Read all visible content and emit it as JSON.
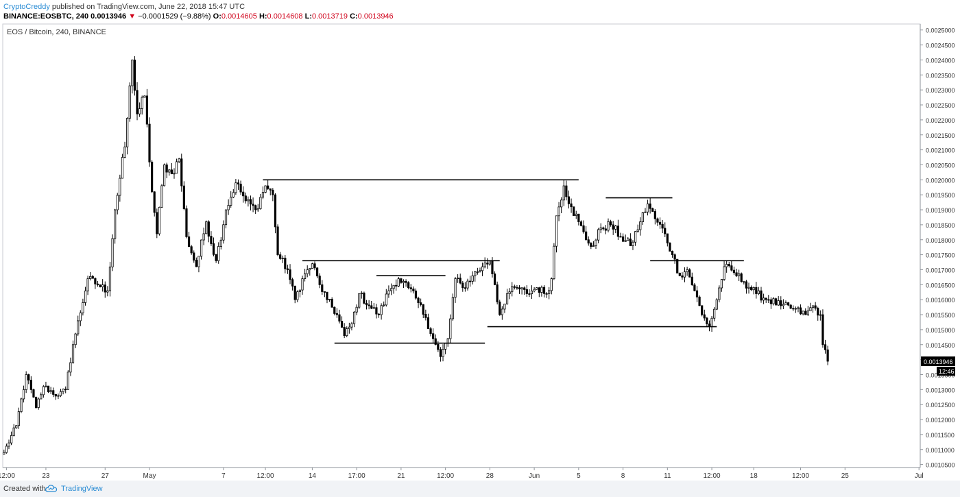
{
  "header": {
    "author": "CryptoCreddy",
    "published": "published on TradingView.com, June 22, 2018 15:47 UTC",
    "symbol": "BINANCE:EOSBTC, 240",
    "last": "0.0013946",
    "change_arrow": "▼",
    "change": "−0.0001529 (−9.88%)",
    "o_label": "O:",
    "o_value": "0.0014605",
    "h_label": "H:",
    "h_value": "0.0014608",
    "l_label": "L:",
    "l_value": "0.0013719",
    "c_label": "C:",
    "c_value": "0.0013946"
  },
  "footer": {
    "created_with": "Created with",
    "brand": "TradingView",
    "logo_icon": "tradingview-cloud-icon"
  },
  "chart_data": {
    "type": "candlestick",
    "title": "EOS / Bitcoin, 240, BINANCE",
    "ylim": [
      0.00104,
      0.00252
    ],
    "y_ticks": [
      "0.0010500",
      "0.0011000",
      "0.0011500",
      "0.0012000",
      "0.0012500",
      "0.0013000",
      "0.0013500",
      "0.0014000",
      "0.0014500",
      "0.0015000",
      "0.0015500",
      "0.0016000",
      "0.0016500",
      "0.0017000",
      "0.0017500",
      "0.0018000",
      "0.0018500",
      "0.0019000",
      "0.0019500",
      "0.0020000",
      "0.0020500",
      "0.0021000",
      "0.0021500",
      "0.0022000",
      "0.0022500",
      "0.0023000",
      "0.0023500",
      "0.0024000",
      "0.0024500",
      "0.0025000"
    ],
    "x_ticks": [
      {
        "label": "12:00",
        "bar": 1
      },
      {
        "label": "23",
        "bar": 17
      },
      {
        "label": "27",
        "bar": 41
      },
      {
        "label": "May",
        "bar": 59
      },
      {
        "label": "7",
        "bar": 89
      },
      {
        "label": "12:00",
        "bar": 106
      },
      {
        "label": "14",
        "bar": 125
      },
      {
        "label": "17:00",
        "bar": 143
      },
      {
        "label": "21",
        "bar": 161
      },
      {
        "label": "12:00",
        "bar": 179
      },
      {
        "label": "28",
        "bar": 197
      },
      {
        "label": "Jun",
        "bar": 215
      },
      {
        "label": "5",
        "bar": 233
      },
      {
        "label": "8",
        "bar": 251
      },
      {
        "label": "11",
        "bar": 269
      },
      {
        "label": "12:00",
        "bar": 287
      },
      {
        "label": "18",
        "bar": 304
      },
      {
        "label": "12:00",
        "bar": 323
      },
      {
        "label": "25",
        "bar": 341
      },
      {
        "label": "Jul",
        "bar": 371
      }
    ],
    "bars_visible": 372,
    "last_price_label": "0.0013946",
    "countdown_label": "12:46",
    "anchors": [
      {
        "bar": 0,
        "price": 0.00109
      },
      {
        "bar": 5,
        "price": 0.00118
      },
      {
        "bar": 9,
        "price": 0.00135
      },
      {
        "bar": 13,
        "price": 0.00124
      },
      {
        "bar": 16,
        "price": 0.00131
      },
      {
        "bar": 22,
        "price": 0.00128
      },
      {
        "bar": 25,
        "price": 0.0013
      },
      {
        "bar": 28,
        "price": 0.00145
      },
      {
        "bar": 34,
        "price": 0.00167
      },
      {
        "bar": 38,
        "price": 0.00165
      },
      {
        "bar": 42,
        "price": 0.00163
      },
      {
        "bar": 45,
        "price": 0.0019
      },
      {
        "bar": 49,
        "price": 0.00211
      },
      {
        "bar": 52,
        "price": 0.0024
      },
      {
        "bar": 54,
        "price": 0.00222
      },
      {
        "bar": 57,
        "price": 0.00228
      },
      {
        "bar": 60,
        "price": 0.00196
      },
      {
        "bar": 62,
        "price": 0.00182
      },
      {
        "bar": 65,
        "price": 0.00205
      },
      {
        "bar": 68,
        "price": 0.00202
      },
      {
        "bar": 71,
        "price": 0.00207
      },
      {
        "bar": 74,
        "price": 0.00181
      },
      {
        "bar": 78,
        "price": 0.00171
      },
      {
        "bar": 82,
        "price": 0.00186
      },
      {
        "bar": 86,
        "price": 0.00173
      },
      {
        "bar": 90,
        "price": 0.0019
      },
      {
        "bar": 94,
        "price": 0.00199
      },
      {
        "bar": 98,
        "price": 0.00193
      },
      {
        "bar": 102,
        "price": 0.0019
      },
      {
        "bar": 106,
        "price": 0.00198
      },
      {
        "bar": 109,
        "price": 0.00195
      },
      {
        "bar": 111,
        "price": 0.00175
      },
      {
        "bar": 115,
        "price": 0.0017
      },
      {
        "bar": 118,
        "price": 0.0016
      },
      {
        "bar": 121,
        "price": 0.00167
      },
      {
        "bar": 125,
        "price": 0.00172
      },
      {
        "bar": 128,
        "price": 0.00165
      },
      {
        "bar": 131,
        "price": 0.0016
      },
      {
        "bar": 135,
        "price": 0.00155
      },
      {
        "bar": 138,
        "price": 0.00148
      },
      {
        "bar": 141,
        "price": 0.00152
      },
      {
        "bar": 144,
        "price": 0.00162
      },
      {
        "bar": 148,
        "price": 0.00158
      },
      {
        "bar": 152,
        "price": 0.00155
      },
      {
        "bar": 156,
        "price": 0.00163
      },
      {
        "bar": 160,
        "price": 0.00167
      },
      {
        "bar": 164,
        "price": 0.00164
      },
      {
        "bar": 168,
        "price": 0.00159
      },
      {
        "bar": 171,
        "price": 0.00154
      },
      {
        "bar": 174,
        "price": 0.00147
      },
      {
        "bar": 177,
        "price": 0.00141
      },
      {
        "bar": 180,
        "price": 0.00147
      },
      {
        "bar": 183,
        "price": 0.00167
      },
      {
        "bar": 186,
        "price": 0.00164
      },
      {
        "bar": 190,
        "price": 0.00168
      },
      {
        "bar": 194,
        "price": 0.00171
      },
      {
        "bar": 197,
        "price": 0.00173
      },
      {
        "bar": 199,
        "price": 0.00165
      },
      {
        "bar": 201,
        "price": 0.00155
      },
      {
        "bar": 204,
        "price": 0.00162
      },
      {
        "bar": 208,
        "price": 0.00164
      },
      {
        "bar": 212,
        "price": 0.00162
      },
      {
        "bar": 216,
        "price": 0.00164
      },
      {
        "bar": 220,
        "price": 0.00162
      },
      {
        "bar": 222,
        "price": 0.00167
      },
      {
        "bar": 224,
        "price": 0.00188
      },
      {
        "bar": 227,
        "price": 0.00198
      },
      {
        "bar": 230,
        "price": 0.00191
      },
      {
        "bar": 233,
        "price": 0.00186
      },
      {
        "bar": 236,
        "price": 0.0018
      },
      {
        "bar": 239,
        "price": 0.00178
      },
      {
        "bar": 242,
        "price": 0.00184
      },
      {
        "bar": 246,
        "price": 0.00185
      },
      {
        "bar": 250,
        "price": 0.00181
      },
      {
        "bar": 254,
        "price": 0.00178
      },
      {
        "bar": 258,
        "price": 0.00186
      },
      {
        "bar": 261,
        "price": 0.00192
      },
      {
        "bar": 264,
        "price": 0.00187
      },
      {
        "bar": 268,
        "price": 0.00182
      },
      {
        "bar": 271,
        "price": 0.00175
      },
      {
        "bar": 274,
        "price": 0.00168
      },
      {
        "bar": 277,
        "price": 0.0017
      },
      {
        "bar": 280,
        "price": 0.00163
      },
      {
        "bar": 283,
        "price": 0.00155
      },
      {
        "bar": 286,
        "price": 0.00151
      },
      {
        "bar": 289,
        "price": 0.0016
      },
      {
        "bar": 292,
        "price": 0.00171
      },
      {
        "bar": 296,
        "price": 0.00169
      },
      {
        "bar": 300,
        "price": 0.00166
      },
      {
        "bar": 305,
        "price": 0.00162
      },
      {
        "bar": 310,
        "price": 0.0016
      },
      {
        "bar": 315,
        "price": 0.00158
      },
      {
        "bar": 320,
        "price": 0.00157
      },
      {
        "bar": 325,
        "price": 0.00155
      },
      {
        "bar": 328,
        "price": 0.00158
      },
      {
        "bar": 331,
        "price": 0.00155
      },
      {
        "bar": 332,
        "price": 0.00145
      },
      {
        "bar": 334,
        "price": 0.0013946
      }
    ],
    "levels": [
      {
        "price": 0.002,
        "from_bar": 105,
        "to_bar": 233
      },
      {
        "price": 0.00173,
        "from_bar": 121,
        "to_bar": 201
      },
      {
        "price": 0.00168,
        "from_bar": 151,
        "to_bar": 179
      },
      {
        "price": 0.001455,
        "from_bar": 134,
        "to_bar": 195
      },
      {
        "price": 0.00151,
        "from_bar": 196,
        "to_bar": 289
      },
      {
        "price": 0.00194,
        "from_bar": 244,
        "to_bar": 271
      },
      {
        "price": 0.00173,
        "from_bar": 262,
        "to_bar": 300
      }
    ]
  }
}
